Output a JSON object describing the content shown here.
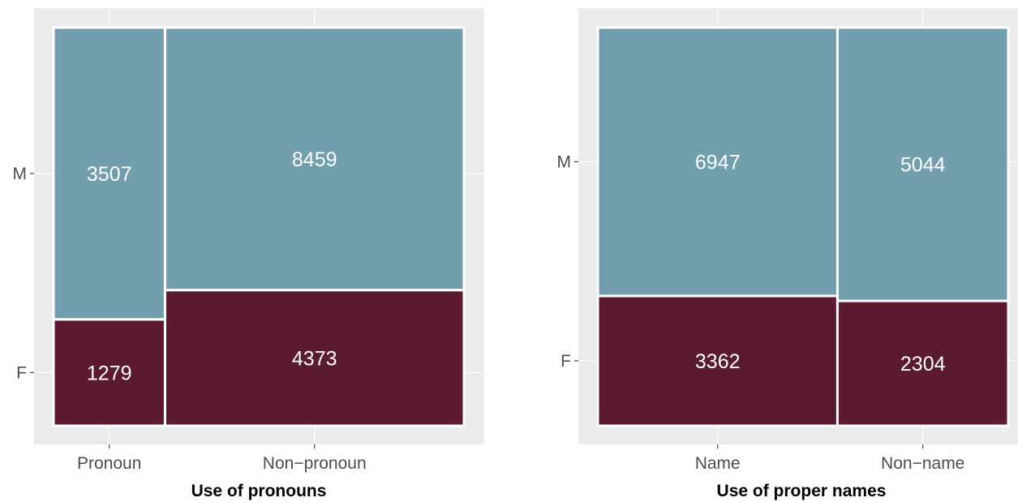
{
  "colors": {
    "panel_background": "#ebebeb",
    "gridline": "#ffffff",
    "tick": "#333333",
    "M": "#729eae",
    "F": "#5c1a32",
    "cell_border": "#ffffff"
  },
  "chart_data": [
    {
      "type": "mosaic",
      "xlabel": "Use of pronouns",
      "ylabel": "",
      "y_categories": [
        "F",
        "M"
      ],
      "columns": [
        {
          "label": "Pronoun",
          "cells": {
            "M": 3507,
            "F": 1279
          }
        },
        {
          "label": "Non−pronoun",
          "cells": {
            "M": 8459,
            "F": 4373
          }
        }
      ],
      "grid": true,
      "legend": "none"
    },
    {
      "type": "mosaic",
      "xlabel": "Use of proper names",
      "ylabel": "",
      "y_categories": [
        "F",
        "M"
      ],
      "columns": [
        {
          "label": "Name",
          "cells": {
            "M": 6947,
            "F": 3362
          }
        },
        {
          "label": "Non−name",
          "cells": {
            "M": 5044,
            "F": 2304
          }
        }
      ],
      "grid": true,
      "legend": "none"
    }
  ]
}
